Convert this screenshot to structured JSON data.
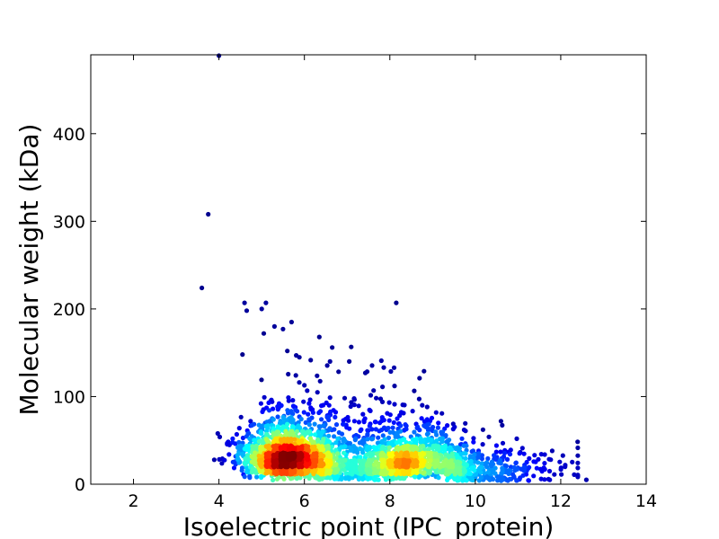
{
  "chart_data": {
    "type": "scatter",
    "xlabel": "Isoelectric point (IPC_protein)",
    "ylabel": "Molecular weight (kDa)",
    "xlim": [
      1,
      14
    ],
    "ylim": [
      0,
      490
    ],
    "xticks": [
      2,
      4,
      6,
      8,
      10,
      12,
      14
    ],
    "yticks": [
      0,
      100,
      200,
      300,
      400
    ],
    "grid": false,
    "color_encoding": "point density (jet colormap: blue = low, red = high)",
    "density_clusters": [
      {
        "center_x": 5.6,
        "center_y": 30,
        "note": "main acidic cluster, highest density"
      },
      {
        "center_x": 8.6,
        "center_y": 20,
        "note": "secondary basic cluster"
      }
    ],
    "outliers": [
      {
        "x": 4.0,
        "y": 489
      },
      {
        "x": 3.75,
        "y": 308
      },
      {
        "x": 3.6,
        "y": 224
      },
      {
        "x": 4.6,
        "y": 207
      },
      {
        "x": 5.1,
        "y": 207
      },
      {
        "x": 8.15,
        "y": 207
      },
      {
        "x": 4.65,
        "y": 198
      },
      {
        "x": 5.0,
        "y": 200
      },
      {
        "x": 5.7,
        "y": 185
      },
      {
        "x": 5.3,
        "y": 180
      },
      {
        "x": 5.05,
        "y": 172
      },
      {
        "x": 5.5,
        "y": 177
      },
      {
        "x": 6.35,
        "y": 168
      },
      {
        "x": 6.65,
        "y": 156
      },
      {
        "x": 5.6,
        "y": 152
      },
      {
        "x": 4.55,
        "y": 148
      },
      {
        "x": 6.6,
        "y": 140
      },
      {
        "x": 7.05,
        "y": 140
      },
      {
        "x": 7.8,
        "y": 141
      },
      {
        "x": 8.1,
        "y": 133
      },
      {
        "x": 8.8,
        "y": 129
      },
      {
        "x": 12.6,
        "y": 5
      },
      {
        "x": 11.8,
        "y": 38
      },
      {
        "x": 10.6,
        "y": 72
      }
    ]
  }
}
